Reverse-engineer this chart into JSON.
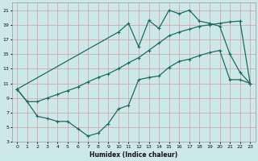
{
  "xlabel": "Humidex (Indice chaleur)",
  "bg_color": "#cce8e8",
  "grid_color_major": "#d4a0a0",
  "line_color": "#1a6e5e",
  "xlim": [
    -0.5,
    23.5
  ],
  "ylim": [
    3,
    22
  ],
  "yticks": [
    3,
    5,
    7,
    9,
    11,
    13,
    15,
    17,
    19,
    21
  ],
  "xticks": [
    0,
    1,
    2,
    3,
    4,
    5,
    6,
    7,
    8,
    9,
    10,
    11,
    12,
    13,
    14,
    15,
    16,
    17,
    18,
    19,
    20,
    21,
    22,
    23
  ],
  "curve1_x": [
    0,
    1,
    2,
    3,
    4,
    5,
    6,
    7,
    8,
    9,
    10,
    11,
    12,
    13,
    14,
    15,
    16,
    17,
    18,
    19,
    20,
    21,
    22,
    23
  ],
  "curve1_y": [
    10.2,
    8.5,
    8.5,
    9.0,
    9.5,
    10.0,
    10.5,
    11.2,
    11.8,
    12.3,
    13.0,
    13.8,
    14.5,
    15.5,
    16.5,
    17.5,
    18.0,
    18.4,
    18.8,
    19.0,
    19.2,
    19.4,
    19.5,
    11.0
  ],
  "curve2_x": [
    0,
    1,
    2,
    3,
    4,
    5,
    6,
    7,
    8,
    9,
    10,
    11,
    12,
    13,
    14,
    15,
    16,
    17,
    18,
    19,
    20,
    21,
    22,
    23
  ],
  "curve2_y": [
    10.2,
    8.5,
    6.5,
    6.2,
    5.8,
    5.8,
    4.8,
    3.8,
    4.2,
    5.5,
    7.5,
    8.0,
    11.5,
    11.8,
    12.0,
    13.2,
    14.0,
    14.3,
    14.8,
    15.2,
    15.5,
    11.5,
    11.5,
    11.0
  ],
  "curve3_x": [
    0,
    10,
    11,
    12,
    13,
    14,
    15,
    16,
    17,
    18,
    19,
    20,
    21,
    22,
    23
  ],
  "curve3_y": [
    10.2,
    18.0,
    19.2,
    16.0,
    19.6,
    18.5,
    21.0,
    20.5,
    21.0,
    19.5,
    19.2,
    18.8,
    15.0,
    12.5,
    11.0
  ]
}
